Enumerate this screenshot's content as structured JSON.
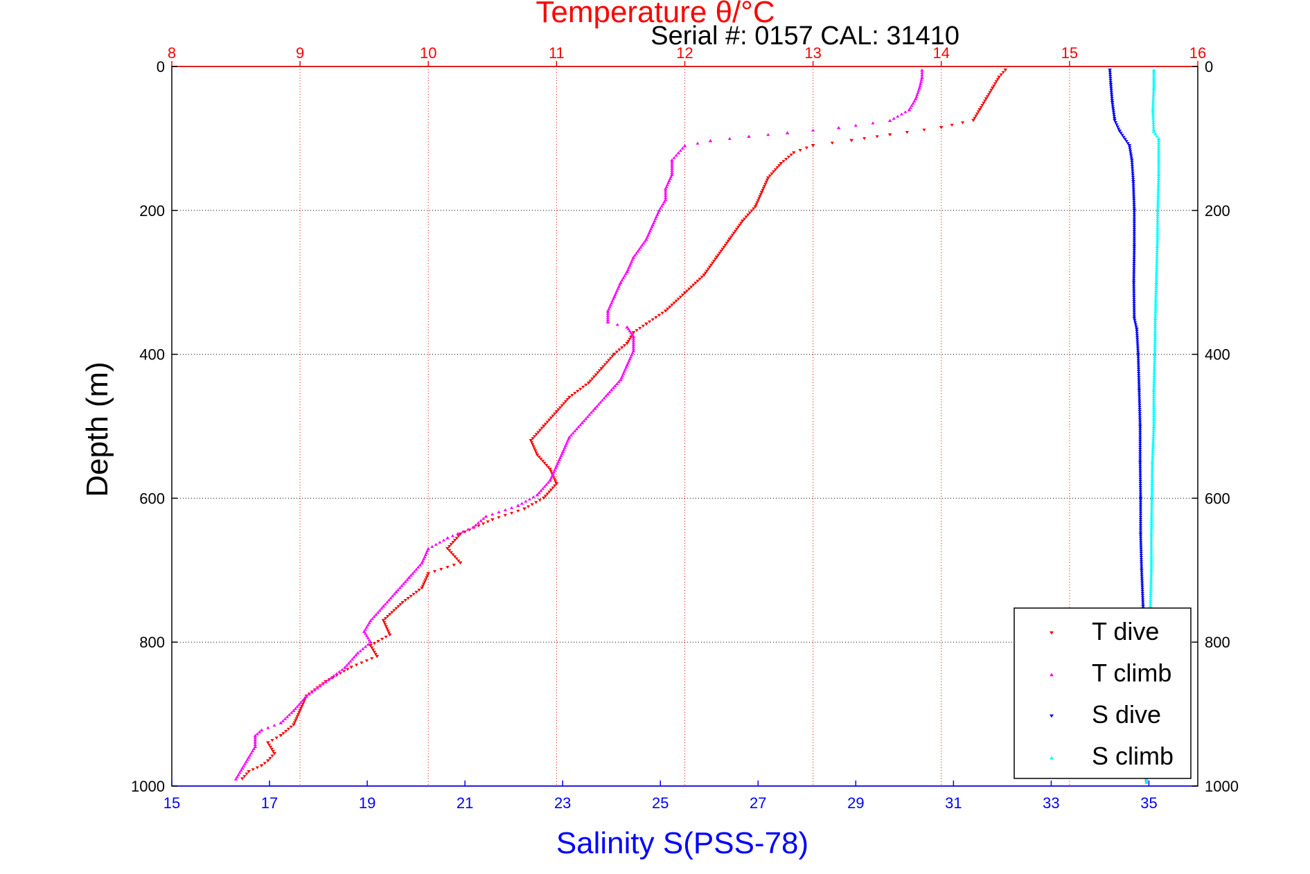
{
  "chart_data": {
    "type": "scatter",
    "title": "Temperature θ/°C",
    "subtitle": "Serial #: 0157  CAL: 31410",
    "xlabel": "Salinity S(PSS-78)",
    "ylabel": "Depth (m)",
    "temperature_axis": {
      "range": [
        8,
        16
      ],
      "ticks": [
        8,
        9,
        10,
        11,
        12,
        13,
        14,
        15,
        16
      ]
    },
    "salinity_axis": {
      "range": [
        15,
        36
      ],
      "ticks": [
        15,
        17,
        19,
        21,
        23,
        25,
        27,
        29,
        31,
        33,
        35
      ]
    },
    "depth_axis": {
      "range": [
        0,
        1000
      ],
      "ticks": [
        0,
        200,
        400,
        600,
        800,
        1000
      ],
      "reversed": true
    },
    "grid": true,
    "legend_position": "bottom-right",
    "series": [
      {
        "name": "T dive",
        "axis": "temperature",
        "color": "#ff0000",
        "marker": "triangle-down",
        "points": [
          [
            14.5,
            5
          ],
          [
            14.45,
            15
          ],
          [
            14.4,
            30
          ],
          [
            14.35,
            45
          ],
          [
            14.3,
            60
          ],
          [
            14.25,
            75
          ],
          [
            14.0,
            85
          ],
          [
            13.6,
            95
          ],
          [
            13.3,
            103
          ],
          [
            13.0,
            110
          ],
          [
            12.85,
            120
          ],
          [
            12.75,
            135
          ],
          [
            12.65,
            155
          ],
          [
            12.6,
            175
          ],
          [
            12.55,
            195
          ],
          [
            12.45,
            215
          ],
          [
            12.35,
            240
          ],
          [
            12.25,
            265
          ],
          [
            12.15,
            290
          ],
          [
            12.0,
            315
          ],
          [
            11.85,
            340
          ],
          [
            11.7,
            358
          ],
          [
            11.6,
            370
          ],
          [
            11.55,
            385
          ],
          [
            11.45,
            400
          ],
          [
            11.35,
            420
          ],
          [
            11.25,
            440
          ],
          [
            11.1,
            460
          ],
          [
            11.0,
            480
          ],
          [
            10.9,
            500
          ],
          [
            10.8,
            520
          ],
          [
            10.85,
            540
          ],
          [
            10.95,
            560
          ],
          [
            11.0,
            580
          ],
          [
            10.9,
            600
          ],
          [
            10.75,
            615
          ],
          [
            10.5,
            630
          ],
          [
            10.25,
            650
          ],
          [
            10.15,
            670
          ],
          [
            10.25,
            690
          ],
          [
            10.0,
            705
          ],
          [
            9.95,
            725
          ],
          [
            9.8,
            745
          ],
          [
            9.65,
            770
          ],
          [
            9.7,
            790
          ],
          [
            9.55,
            805
          ],
          [
            9.6,
            820
          ],
          [
            9.4,
            835
          ],
          [
            9.2,
            855
          ],
          [
            9.05,
            875
          ],
          [
            9.0,
            895
          ],
          [
            8.95,
            915
          ],
          [
            8.85,
            930
          ],
          [
            8.75,
            940
          ],
          [
            8.8,
            955
          ],
          [
            8.75,
            965
          ],
          [
            8.7,
            972
          ],
          [
            8.6,
            980
          ],
          [
            8.55,
            990
          ]
        ]
      },
      {
        "name": "T climb",
        "axis": "temperature",
        "color": "#ff00ff",
        "marker": "triangle-up",
        "points": [
          [
            13.85,
            5
          ],
          [
            13.85,
            15
          ],
          [
            13.83,
            30
          ],
          [
            13.8,
            45
          ],
          [
            13.75,
            60
          ],
          [
            13.6,
            75
          ],
          [
            13.2,
            85
          ],
          [
            12.8,
            92
          ],
          [
            12.5,
            97
          ],
          [
            12.2,
            103
          ],
          [
            12.0,
            110
          ],
          [
            11.95,
            120
          ],
          [
            11.9,
            130
          ],
          [
            11.9,
            150
          ],
          [
            11.85,
            170
          ],
          [
            11.85,
            185
          ],
          [
            11.8,
            200
          ],
          [
            11.75,
            220
          ],
          [
            11.7,
            240
          ],
          [
            11.6,
            265
          ],
          [
            11.55,
            285
          ],
          [
            11.5,
            300
          ],
          [
            11.45,
            320
          ],
          [
            11.4,
            340
          ],
          [
            11.4,
            355
          ],
          [
            11.55,
            362
          ],
          [
            11.6,
            375
          ],
          [
            11.6,
            395
          ],
          [
            11.55,
            415
          ],
          [
            11.5,
            435
          ],
          [
            11.4,
            455
          ],
          [
            11.3,
            475
          ],
          [
            11.2,
            495
          ],
          [
            11.1,
            515
          ],
          [
            11.05,
            535
          ],
          [
            11.0,
            555
          ],
          [
            10.95,
            575
          ],
          [
            10.85,
            595
          ],
          [
            10.7,
            610
          ],
          [
            10.45,
            625
          ],
          [
            10.35,
            640
          ],
          [
            10.15,
            655
          ],
          [
            10.0,
            670
          ],
          [
            9.95,
            690
          ],
          [
            9.85,
            710
          ],
          [
            9.75,
            730
          ],
          [
            9.65,
            750
          ],
          [
            9.55,
            770
          ],
          [
            9.5,
            785
          ],
          [
            9.55,
            800
          ],
          [
            9.45,
            815
          ],
          [
            9.35,
            835
          ],
          [
            9.2,
            855
          ],
          [
            9.05,
            875
          ],
          [
            8.95,
            895
          ],
          [
            8.85,
            912
          ],
          [
            8.7,
            922
          ],
          [
            8.65,
            930
          ],
          [
            8.65,
            945
          ],
          [
            8.6,
            960
          ],
          [
            8.55,
            975
          ],
          [
            8.5,
            990
          ]
        ]
      },
      {
        "name": "S dive",
        "axis": "salinity",
        "color": "#0000ff",
        "marker": "triangle-down",
        "points": [
          [
            34.2,
            5
          ],
          [
            34.22,
            25
          ],
          [
            34.25,
            50
          ],
          [
            34.3,
            75
          ],
          [
            34.4,
            90
          ],
          [
            34.6,
            110
          ],
          [
            34.65,
            130
          ],
          [
            34.68,
            160
          ],
          [
            34.7,
            200
          ],
          [
            34.7,
            250
          ],
          [
            34.69,
            300
          ],
          [
            34.7,
            350
          ],
          [
            34.75,
            365
          ],
          [
            34.78,
            400
          ],
          [
            34.8,
            450
          ],
          [
            34.82,
            500
          ],
          [
            34.82,
            550
          ],
          [
            34.83,
            600
          ],
          [
            34.83,
            650
          ],
          [
            34.85,
            700
          ],
          [
            34.88,
            750
          ],
          [
            34.9,
            800
          ],
          [
            34.9,
            850
          ],
          [
            34.92,
            900
          ],
          [
            34.92,
            950
          ],
          [
            34.95,
            995
          ]
        ]
      },
      {
        "name": "S climb",
        "axis": "salinity",
        "color": "#00ffff",
        "marker": "triangle-up",
        "points": [
          [
            35.1,
            5
          ],
          [
            35.1,
            30
          ],
          [
            35.08,
            60
          ],
          [
            35.1,
            90
          ],
          [
            35.2,
            100
          ],
          [
            35.2,
            150
          ],
          [
            35.18,
            200
          ],
          [
            35.17,
            250
          ],
          [
            35.15,
            300
          ],
          [
            35.13,
            350
          ],
          [
            35.12,
            400
          ],
          [
            35.1,
            450
          ],
          [
            35.1,
            500
          ],
          [
            35.07,
            550
          ],
          [
            35.06,
            600
          ],
          [
            35.05,
            650
          ],
          [
            35.05,
            700
          ],
          [
            35.03,
            750
          ],
          [
            35.0,
            800
          ],
          [
            34.98,
            850
          ],
          [
            34.97,
            900
          ],
          [
            34.96,
            950
          ],
          [
            34.95,
            995
          ]
        ]
      }
    ]
  }
}
